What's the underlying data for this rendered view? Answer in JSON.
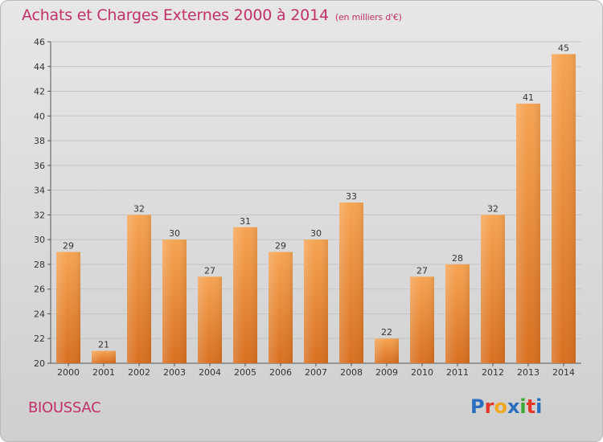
{
  "title": "Achats et Charges Externes 2000 à 2014",
  "unit": "(en milliers d'€)",
  "commune": "BIOUSSAC",
  "logo": {
    "letters": [
      "P",
      "r",
      "o",
      "x",
      "i",
      "t",
      "i"
    ],
    "colors": [
      "#2a6fbf",
      "#e6382b",
      "#f0a81f",
      "#2a6fbf",
      "#3aa935",
      "#e6382b",
      "#2a6fbf"
    ]
  },
  "colors": {
    "title": "#c2306a",
    "bar_top": "#f6a452",
    "bar_bottom": "#d86f1f",
    "grid": "#c4c4c4",
    "axis": "#555555"
  },
  "chart_data": {
    "type": "bar",
    "title": "Achats et Charges Externes 2000 à 2014",
    "xlabel": "",
    "ylabel": "",
    "ylim": [
      20,
      46
    ],
    "yticks": [
      20,
      22,
      24,
      26,
      28,
      30,
      32,
      34,
      36,
      38,
      40,
      42,
      44,
      46
    ],
    "grid": true,
    "categories": [
      "2000",
      "2001",
      "2002",
      "2003",
      "2004",
      "2005",
      "2006",
      "2007",
      "2008",
      "2009",
      "2010",
      "2011",
      "2012",
      "2013",
      "2014"
    ],
    "values": [
      29,
      21,
      32,
      30,
      27,
      31,
      29,
      30,
      33,
      22,
      27,
      28,
      32,
      41,
      45
    ]
  }
}
